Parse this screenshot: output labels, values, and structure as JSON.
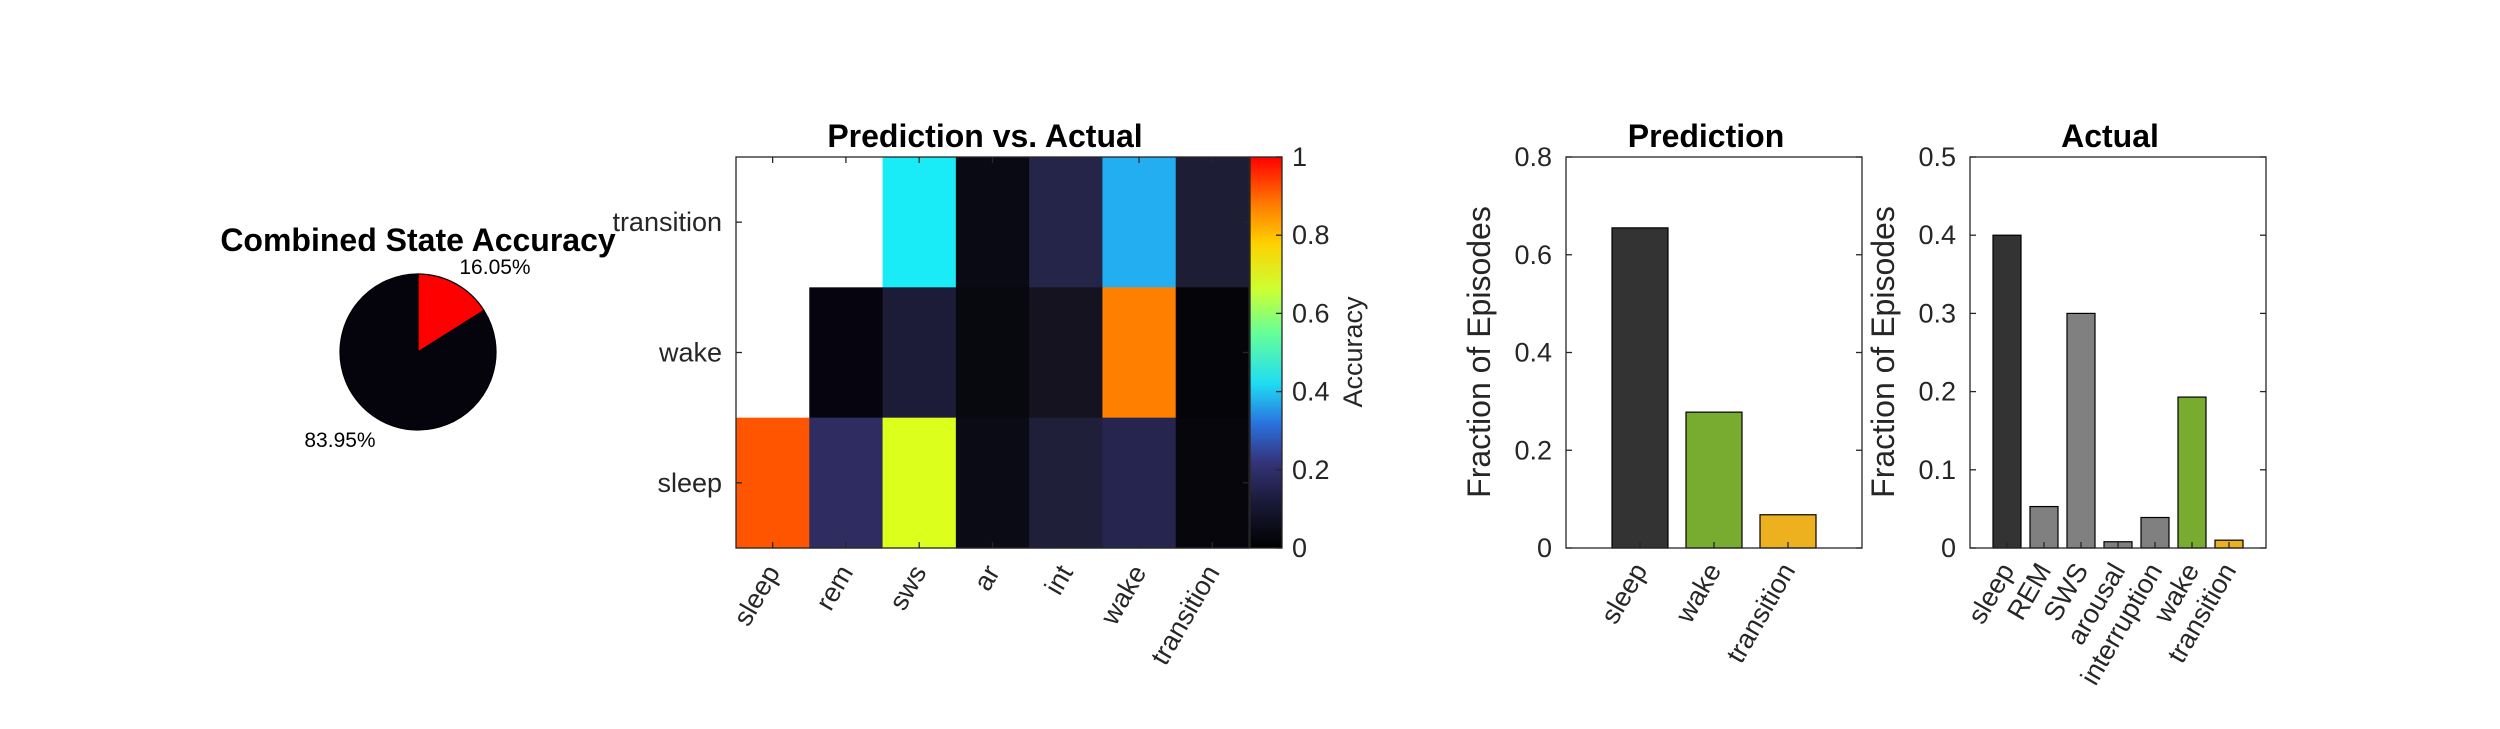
{
  "chart_data": [
    {
      "type": "pie",
      "title": "Combined State Accuracy",
      "slices": [
        {
          "label": "16.05%",
          "value": 16.05,
          "color": "#ff0000"
        },
        {
          "label": "83.95%",
          "value": 83.95,
          "color": "#05030c"
        }
      ]
    },
    {
      "type": "heatmap",
      "title": "Prediction vs. Actual",
      "x_categories": [
        "sleep",
        "rem",
        "sws",
        "ar",
        "int",
        "wake",
        "transition"
      ],
      "y_categories": [
        "transition",
        "wake",
        "sleep"
      ],
      "values": [
        [
          null,
          null,
          0.42,
          0.02,
          0.12,
          0.33,
          0.09
        ],
        [
          null,
          0.03,
          0.1,
          0.02,
          0.06,
          0.75,
          0.02
        ],
        [
          0.82,
          0.17,
          0.62,
          0.03,
          0.1,
          0.14,
          0.02
        ]
      ],
      "cell_colors": [
        [
          null,
          null,
          "#19ecf6",
          "#0a0a14",
          "#25254a",
          "#22aef1",
          "#1d1d36"
        ],
        [
          null,
          "#06050f",
          "#1c1c38",
          "#08080f",
          "#14131f",
          "#ff8000",
          "#050509"
        ],
        [
          "#ff5500",
          "#2f2c62",
          "#dcff1c",
          "#0b0b16",
          "#1f1f3a",
          "#252550",
          "#06060c"
        ]
      ],
      "colorbar": {
        "label": "Accuracy",
        "range": [
          0,
          1
        ],
        "ticks": [
          "0",
          "0.2",
          "0.4",
          "0.6",
          "0.8",
          "1"
        ]
      }
    },
    {
      "type": "bar",
      "title": "Prediction",
      "ylabel": "Fraction of Episodes",
      "categories": [
        "sleep",
        "wake",
        "transition"
      ],
      "values": [
        0.655,
        0.278,
        0.068
      ],
      "colors": [
        "#333333",
        "#77ac30",
        "#edb120"
      ],
      "ylim": [
        0,
        0.8
      ],
      "yticks": [
        "0",
        "0.2",
        "0.4",
        "0.6",
        "0.8"
      ],
      "yticks_values": [
        0,
        0.2,
        0.4,
        0.6,
        0.8
      ]
    },
    {
      "type": "bar",
      "title": "Actual",
      "ylabel": "Fraction of Episodes",
      "categories": [
        "sleep",
        "REM",
        "SWS",
        "arousal",
        "interruption",
        "wake",
        "transition"
      ],
      "values": [
        0.4,
        0.053,
        0.3,
        0.008,
        0.039,
        0.193,
        0.01
      ],
      "colors": [
        "#333333",
        "#808080",
        "#808080",
        "#808080",
        "#808080",
        "#77ac30",
        "#edb120"
      ],
      "ylim": [
        0,
        0.5
      ],
      "yticks": [
        "0",
        "0.1",
        "0.2",
        "0.3",
        "0.4",
        "0.5"
      ],
      "yticks_values": [
        0,
        0.1,
        0.2,
        0.3,
        0.4,
        0.5
      ]
    }
  ]
}
